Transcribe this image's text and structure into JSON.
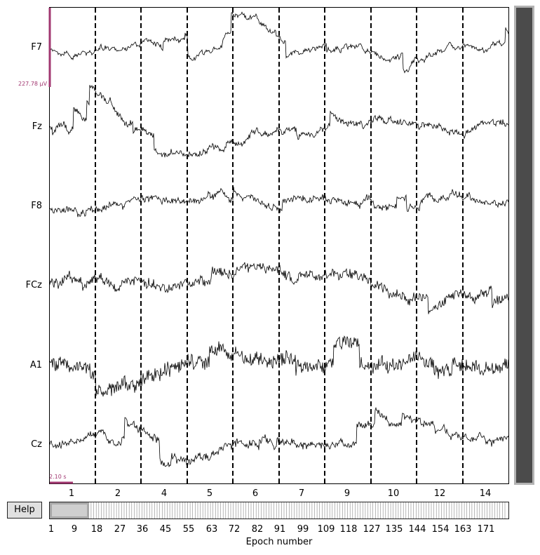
{
  "channels": [
    "F7",
    "Fz",
    "F8",
    "FCz",
    "A1",
    "Cz"
  ],
  "scale_bar": {
    "amplitude_label": "227.78 µV",
    "time_label": "2.10 s"
  },
  "epoch_numbers_top": [
    "1",
    "2",
    "4",
    "5",
    "6",
    "7",
    "9",
    "10",
    "12",
    "14"
  ],
  "help_button": {
    "label": "Help"
  },
  "epoch_axis": {
    "tick_labels": [
      "1",
      "9",
      "18",
      "27",
      "36",
      "45",
      "55",
      "63",
      "72",
      "82",
      "91",
      "99",
      "109",
      "118",
      "127",
      "135",
      "144",
      "154",
      "163",
      "171"
    ],
    "label": "Epoch number"
  },
  "colors": {
    "trace": "#000000",
    "scale_bar": "#a13770",
    "scrollbar_fill": "#4b4b4b"
  }
}
